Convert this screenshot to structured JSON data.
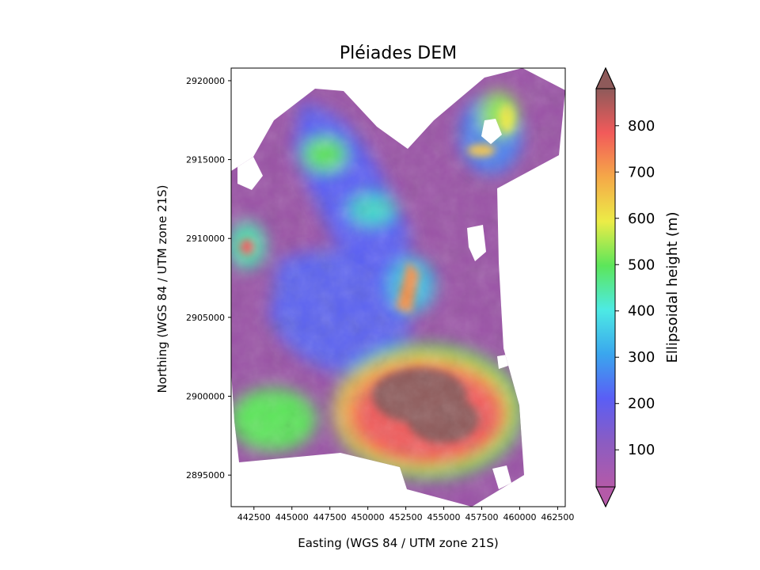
{
  "chart_data": {
    "type": "heatmap",
    "title": "Pléiades DEM",
    "xlabel": "Easting (WGS 84 / UTM zone 21S)",
    "ylabel": "Northing (WGS 84 / UTM zone 21S)",
    "xlim": [
      441000,
      463000
    ],
    "ylim": [
      2893000,
      2920800
    ],
    "x_ticks": [
      442500,
      445000,
      447500,
      450000,
      452500,
      455000,
      457500,
      460000,
      462500
    ],
    "y_ticks": [
      2895000,
      2900000,
      2905000,
      2910000,
      2915000,
      2920000
    ],
    "colorbar": {
      "label": "Ellipsoidal height (m)",
      "range": [
        20,
        880
      ],
      "ticks": [
        100,
        200,
        300,
        400,
        500,
        600,
        700,
        800
      ],
      "extend": "both",
      "colormap": "rainbow"
    },
    "colors": {
      "stops": [
        "#b45aa8",
        "#8b5cc2",
        "#5a5ef5",
        "#3aa6ee",
        "#4deae4",
        "#5ce65a",
        "#ecec47",
        "#f5a848",
        "#f25a5a",
        "#8e5a5a"
      ],
      "low_extend": "#b45aa8",
      "high_extend": "#8e5a5a"
    },
    "grid": false
  }
}
